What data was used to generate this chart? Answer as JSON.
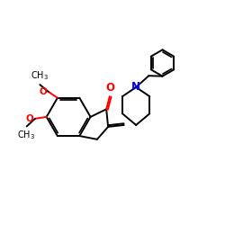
{
  "bg_color": "#ffffff",
  "bond_color": "#000000",
  "o_color": "#ff0000",
  "n_color": "#0000ff",
  "lw": 1.4,
  "fs": 7.5,
  "fig_size": [
    2.5,
    2.5
  ],
  "dpi": 100,
  "xlim": [
    0,
    10
  ],
  "ylim": [
    0,
    10
  ]
}
